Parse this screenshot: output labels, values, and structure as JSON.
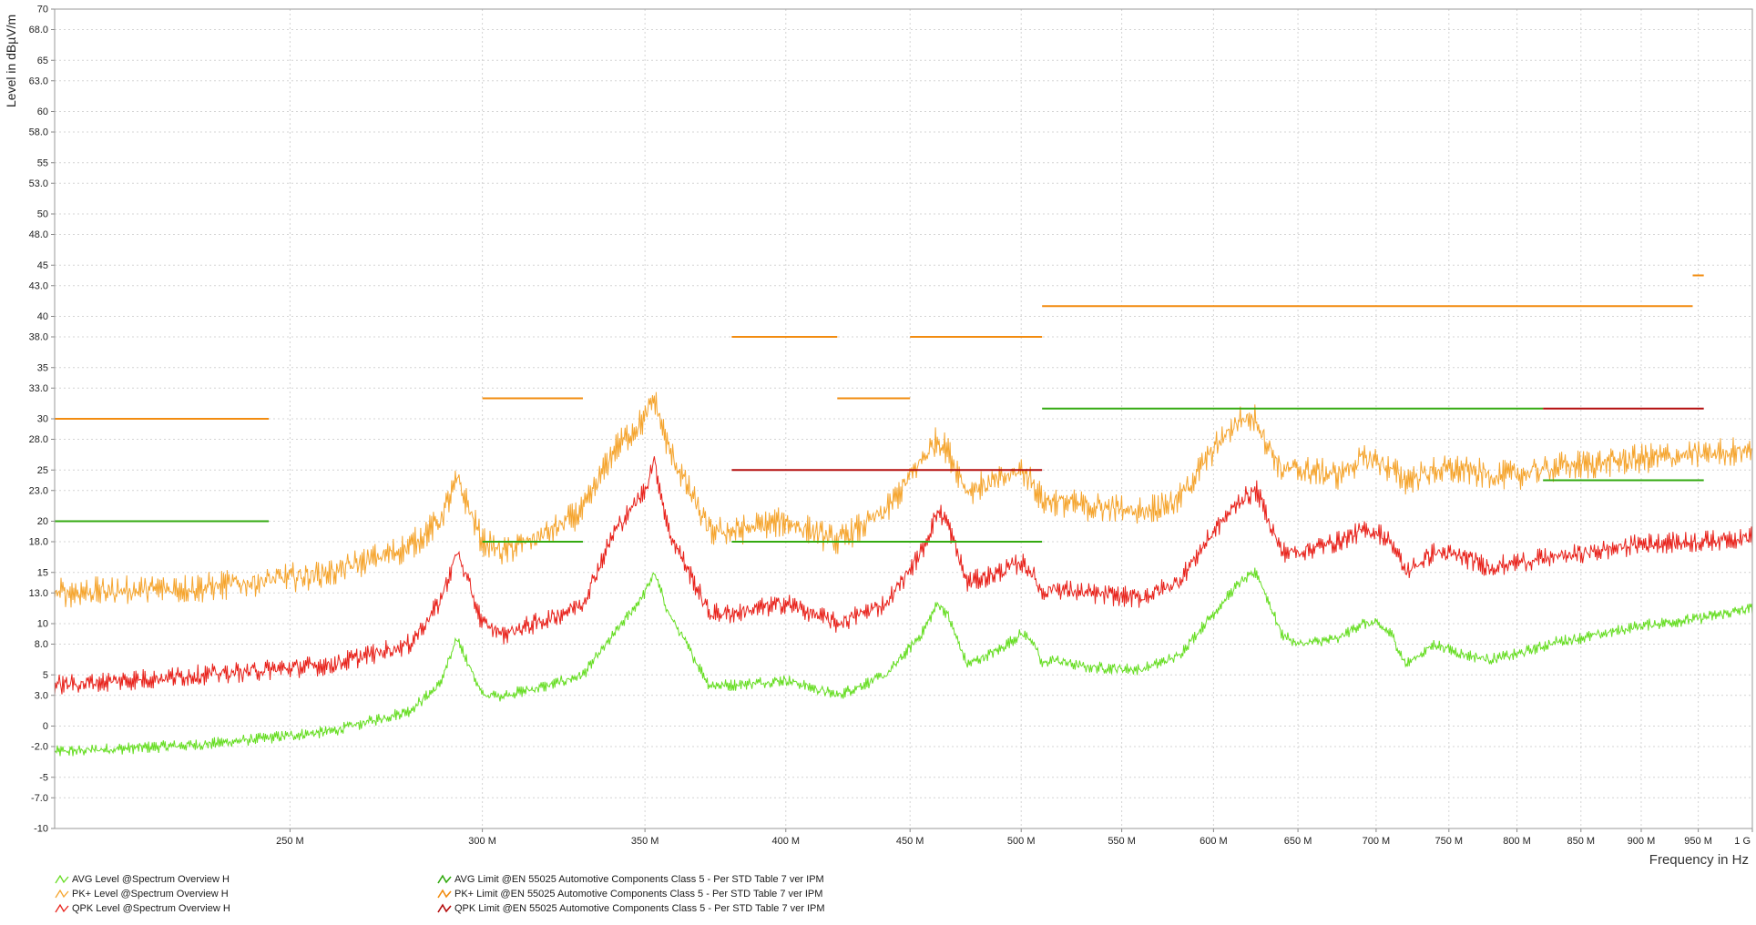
{
  "chart_data": {
    "type": "line",
    "ylabel": "Level in dBµV/m",
    "xlabel": "Frequency in Hz",
    "xlim": [
      200,
      1000
    ],
    "ylim": [
      -10,
      70
    ],
    "y_ticks": [
      "70",
      "68.0",
      "65",
      "63.0",
      "60",
      "58.0",
      "55",
      "53.0",
      "50",
      "48.0",
      "45",
      "43.0",
      "40",
      "38.0",
      "35",
      "33.0",
      "30",
      "28.0",
      "25",
      "23.0",
      "20",
      "18.0",
      "15",
      "13.0",
      "10",
      "8.0",
      "5",
      "3.0",
      "0",
      "-2.0",
      "-5",
      "-7.0",
      "-10"
    ],
    "x_ticks": [
      {
        "f": 250,
        "label": "250 M"
      },
      {
        "f": 300,
        "label": "300 M"
      },
      {
        "f": 350,
        "label": "350 M"
      },
      {
        "f": 400,
        "label": "400 M"
      },
      {
        "f": 450,
        "label": "450 M"
      },
      {
        "f": 500,
        "label": "500 M"
      },
      {
        "f": 550,
        "label": "550 M"
      },
      {
        "f": 600,
        "label": "600 M"
      },
      {
        "f": 650,
        "label": "650 M"
      },
      {
        "f": 700,
        "label": "700 M"
      },
      {
        "f": 750,
        "label": "750 M"
      },
      {
        "f": 800,
        "label": "800 M"
      },
      {
        "f": 850,
        "label": "850 M"
      },
      {
        "f": 900,
        "label": "900 M"
      },
      {
        "f": 950,
        "label": "950 M"
      },
      {
        "f": 1000,
        "label": "1 G"
      }
    ],
    "grid": true,
    "legend_placement": "bottom",
    "series": [
      {
        "name": "AVG Level @Spectrum Overview H",
        "color": "#66dd22",
        "kind": "trace",
        "noise": 0.4,
        "x": [
          200,
          230,
          260,
          280,
          288,
          293,
          300,
          306,
          320,
          330,
          340,
          350,
          353,
          358,
          372,
          380,
          400,
          420,
          440,
          455,
          462,
          466,
          475,
          490,
          500,
          505,
          510,
          515,
          530,
          560,
          580,
          600,
          615,
          625,
          630,
          640,
          650,
          675,
          690,
          700,
          710,
          720,
          740,
          760,
          780,
          800,
          830,
          860,
          900,
          950,
          1000
        ],
        "y": [
          -2.5,
          -1.8,
          -0.5,
          1.5,
          4,
          8.5,
          3,
          3,
          4,
          5,
          9,
          13,
          15,
          11,
          4,
          4,
          4.5,
          3,
          5,
          9,
          12,
          11,
          6,
          7.5,
          9,
          8.5,
          6,
          6.5,
          5.8,
          5.5,
          6.8,
          11,
          14,
          15,
          13,
          9,
          8,
          8.5,
          10,
          10,
          9,
          6,
          8,
          7,
          6.5,
          7,
          8.2,
          8.8,
          9.8,
          10.5,
          11.5
        ]
      },
      {
        "name": "PK+ Level @Spectrum Overview H",
        "color": "#f5a52f",
        "kind": "trace",
        "noise": 1.0,
        "x": [
          200,
          230,
          260,
          280,
          288,
          293,
          300,
          306,
          320,
          330,
          340,
          350,
          353,
          358,
          372,
          380,
          400,
          420,
          440,
          455,
          462,
          466,
          475,
          490,
          500,
          505,
          510,
          515,
          530,
          560,
          580,
          600,
          615,
          625,
          630,
          640,
          650,
          675,
          690,
          700,
          710,
          720,
          740,
          760,
          780,
          800,
          830,
          860,
          900,
          950,
          1000
        ],
        "y": [
          13,
          13.5,
          15,
          17.5,
          20,
          24,
          18,
          17,
          19,
          21,
          27,
          30,
          32,
          27,
          19,
          19,
          20,
          18,
          21,
          26,
          28,
          27,
          23,
          24,
          25,
          24,
          22,
          22,
          21.5,
          21,
          22,
          27,
          30,
          30,
          28,
          25,
          25,
          24.5,
          26,
          26,
          25,
          24,
          25,
          25,
          24.5,
          24.5,
          25.3,
          25.6,
          26.1,
          26.5,
          27
        ]
      },
      {
        "name": "QPK Level @Spectrum Overview H",
        "color": "#e8231c",
        "kind": "trace",
        "noise": 0.7,
        "x": [
          200,
          230,
          260,
          280,
          288,
          293,
          300,
          306,
          320,
          330,
          340,
          350,
          353,
          358,
          372,
          380,
          400,
          420,
          440,
          455,
          462,
          466,
          475,
          490,
          500,
          505,
          510,
          515,
          530,
          560,
          580,
          600,
          615,
          625,
          630,
          640,
          650,
          675,
          690,
          700,
          710,
          720,
          740,
          760,
          780,
          800,
          830,
          860,
          900,
          950,
          1000
        ],
        "y": [
          4,
          5,
          6,
          8,
          12,
          17,
          10,
          9,
          10.5,
          12,
          19,
          23,
          26,
          19,
          11,
          11,
          12,
          10,
          12,
          17,
          21,
          20,
          14,
          15,
          16,
          15,
          13,
          13.5,
          13,
          12.5,
          14,
          19,
          22,
          23,
          21,
          17,
          17,
          18,
          19,
          19,
          18,
          15,
          17,
          16.5,
          15.5,
          16,
          16.5,
          17,
          17.8,
          18,
          18.5
        ]
      },
      {
        "name": "AVG Limit @EN 55025 Automotive Components Class 5 - Per STD Table 7 ver IPM",
        "color": "#33aa11",
        "kind": "limit",
        "segments": [
          [
            200,
            245,
            20
          ],
          [
            300,
            330,
            18
          ],
          [
            380,
            510,
            18
          ],
          [
            510,
            820,
            31
          ],
          [
            820,
            955,
            24
          ]
        ]
      },
      {
        "name": "PK+ Limit @EN 55025 Automotive Components Class 5 - Per STD Table 7 ver IPM",
        "color": "#f28c10",
        "kind": "limit",
        "segments": [
          [
            200,
            245,
            30
          ],
          [
            300,
            330,
            32
          ],
          [
            380,
            420,
            38
          ],
          [
            420,
            450,
            32
          ],
          [
            450,
            510,
            38
          ],
          [
            510,
            945,
            41
          ],
          [
            945,
            955,
            44
          ]
        ]
      },
      {
        "name": "QPK Limit @EN 55025 Automotive Components Class 5 - Per STD Table 7 ver IPM",
        "color": "#b40d0d",
        "kind": "limit",
        "segments": [
          [
            380,
            510,
            25
          ],
          [
            820,
            955,
            31
          ]
        ]
      }
    ]
  }
}
